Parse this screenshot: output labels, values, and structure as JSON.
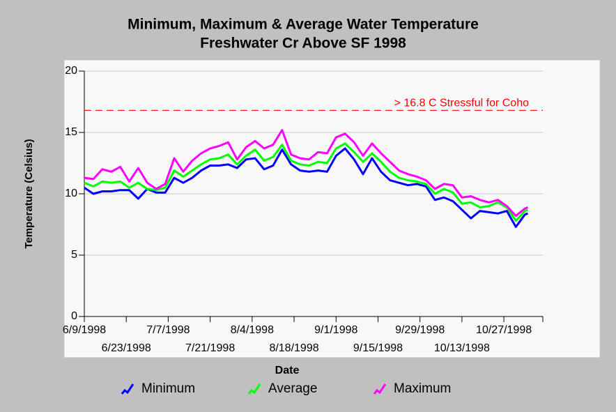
{
  "chart_data": {
    "type": "line",
    "title": "Minimum, Maximum & Average Water Temperature",
    "subtitle": "Freshwater Cr Above SF 1998",
    "x_label": "Date",
    "y_label": "Temperature (Celsius)",
    "x": [
      "6/9/1998",
      "6/12/1998",
      "6/15/1998",
      "6/18/1998",
      "6/21/1998",
      "6/24/1998",
      "6/27/1998",
      "6/30/1998",
      "7/3/1998",
      "7/6/1998",
      "7/9/1998",
      "7/12/1998",
      "7/15/1998",
      "7/18/1998",
      "7/21/1998",
      "7/24/1998",
      "7/27/1998",
      "7/30/1998",
      "8/2/1998",
      "8/5/1998",
      "8/8/1998",
      "8/11/1998",
      "8/14/1998",
      "8/17/1998",
      "8/20/1998",
      "8/23/1998",
      "8/26/1998",
      "8/29/1998",
      "9/1/1998",
      "9/4/1998",
      "9/7/1998",
      "9/10/1998",
      "9/13/1998",
      "9/16/1998",
      "9/19/1998",
      "9/22/1998",
      "9/25/1998",
      "9/28/1998",
      "10/1/1998",
      "10/4/1998",
      "10/7/1998",
      "10/10/1998",
      "10/13/1998",
      "10/16/1998",
      "10/19/1998",
      "10/22/1998",
      "10/25/1998",
      "10/28/1998",
      "10/31/1998",
      "11/3/1998",
      "11/4/1998"
    ],
    "series": [
      {
        "name": "Minimum",
        "color": "#0000ff",
        "values": [
          10.5,
          10.0,
          10.2,
          10.2,
          10.3,
          10.3,
          9.6,
          10.4,
          10.1,
          10.1,
          11.3,
          10.9,
          11.3,
          11.9,
          12.3,
          12.3,
          12.4,
          12.1,
          12.8,
          12.9,
          12.0,
          12.3,
          13.6,
          12.4,
          11.9,
          11.8,
          11.9,
          11.8,
          13.1,
          13.7,
          12.8,
          11.6,
          12.9,
          11.8,
          11.1,
          10.9,
          10.7,
          10.8,
          10.6,
          9.5,
          9.7,
          9.4,
          8.7,
          8.0,
          8.6,
          8.5,
          8.4,
          8.6,
          7.3,
          8.3,
          8.4
        ]
      },
      {
        "name": "Average",
        "color": "#00ff00",
        "values": [
          10.9,
          10.6,
          11.0,
          10.9,
          11.0,
          10.5,
          10.9,
          10.4,
          10.3,
          10.5,
          11.9,
          11.4,
          11.9,
          12.4,
          12.8,
          12.9,
          13.2,
          12.4,
          13.1,
          13.6,
          12.7,
          13.0,
          14.0,
          12.7,
          12.4,
          12.3,
          12.6,
          12.5,
          13.7,
          14.1,
          13.4,
          12.6,
          13.3,
          12.6,
          11.8,
          11.3,
          11.1,
          11.0,
          10.8,
          10.0,
          10.4,
          10.1,
          9.2,
          9.3,
          8.9,
          9.0,
          9.3,
          8.9,
          7.8,
          8.6,
          8.7
        ]
      },
      {
        "name": "Maximum",
        "color": "#ff00ff",
        "values": [
          11.3,
          11.2,
          12.0,
          11.8,
          12.2,
          11.0,
          12.1,
          10.9,
          10.4,
          10.8,
          12.9,
          11.8,
          12.7,
          13.3,
          13.7,
          13.9,
          14.2,
          12.8,
          13.8,
          14.3,
          13.7,
          14.0,
          15.2,
          13.2,
          12.9,
          12.8,
          13.4,
          13.3,
          14.6,
          14.9,
          14.2,
          13.1,
          14.1,
          13.3,
          12.6,
          11.9,
          11.6,
          11.4,
          11.1,
          10.4,
          10.8,
          10.7,
          9.7,
          9.8,
          9.5,
          9.3,
          9.5,
          9.0,
          8.2,
          8.8,
          8.9
        ]
      }
    ],
    "xlim": [
      "6/9/1998",
      "11/9/1998"
    ],
    "xticks": [
      "6/9/1998",
      "6/23/1998",
      "7/7/1998",
      "7/21/1998",
      "8/4/1998",
      "8/18/1998",
      "9/1/1998",
      "9/15/1998",
      "9/29/1998",
      "10/13/1998",
      "10/27/1998"
    ],
    "ylim": [
      0,
      20
    ],
    "yticks": [
      0,
      5,
      10,
      15,
      20
    ],
    "grid": true,
    "reference_lines": [
      {
        "value": 16.8,
        "label": "> 16.8 C Stressful for Coho",
        "color": "#ff0000"
      }
    ],
    "legend": "bottom"
  }
}
